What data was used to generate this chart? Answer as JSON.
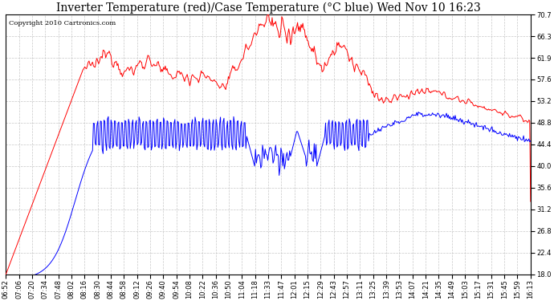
{
  "title": "Inverter Temperature (red)/Case Temperature (°C blue) Wed Nov 10 16:23",
  "copyright": "Copyright 2010 Cartronics.com",
  "ylim": [
    18.0,
    70.7
  ],
  "yticks": [
    18.0,
    22.4,
    26.8,
    31.2,
    35.6,
    40.0,
    44.4,
    48.8,
    53.2,
    57.6,
    61.9,
    66.3,
    70.7
  ],
  "background_color": "#ffffff",
  "grid_color": "#c8c8c8",
  "red_color": "#ff0000",
  "blue_color": "#0000ff",
  "title_fontsize": 10,
  "copyright_fontsize": 6,
  "tick_fontsize": 6,
  "num_points": 600,
  "xtick_labels": [
    "06:52",
    "07:06",
    "07:20",
    "07:34",
    "07:48",
    "08:02",
    "08:16",
    "08:30",
    "08:44",
    "08:58",
    "09:12",
    "09:26",
    "09:40",
    "09:54",
    "10:08",
    "10:22",
    "10:36",
    "10:50",
    "11:04",
    "11:18",
    "11:33",
    "11:47",
    "12:01",
    "12:15",
    "12:29",
    "12:43",
    "12:57",
    "13:11",
    "13:25",
    "13:39",
    "13:53",
    "14:07",
    "14:21",
    "14:35",
    "14:49",
    "15:03",
    "15:17",
    "15:31",
    "15:45",
    "15:59",
    "16:13"
  ]
}
